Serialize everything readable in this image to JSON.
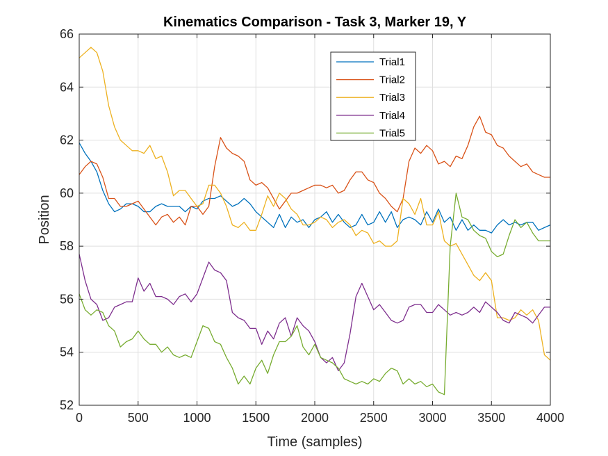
{
  "chart_data": {
    "type": "line",
    "title": "Kinematics Comparison - Task 3, Marker 19, Y",
    "xlabel": "Time (samples)",
    "ylabel": "Position",
    "xlim": [
      0,
      4000
    ],
    "ylim": [
      52,
      66
    ],
    "xticks": [
      0,
      500,
      1000,
      1500,
      2000,
      2500,
      3000,
      3500,
      4000
    ],
    "yticks": [
      52,
      54,
      56,
      58,
      60,
      62,
      64,
      66
    ],
    "grid": true,
    "legend_position": "top-right",
    "series": [
      {
        "name": "Trial1",
        "color": "#0072BD",
        "x": [
          0,
          50,
          100,
          150,
          200,
          250,
          300,
          350,
          400,
          450,
          500,
          550,
          600,
          650,
          700,
          750,
          800,
          850,
          900,
          950,
          1000,
          1050,
          1100,
          1150,
          1200,
          1250,
          1300,
          1350,
          1400,
          1450,
          1500,
          1550,
          1600,
          1650,
          1700,
          1750,
          1800,
          1850,
          1900,
          1950,
          2000,
          2050,
          2100,
          2150,
          2200,
          2250,
          2300,
          2350,
          2400,
          2450,
          2500,
          2550,
          2600,
          2650,
          2700,
          2750,
          2800,
          2850,
          2900,
          2950,
          3000,
          3050,
          3100,
          3150,
          3200,
          3250,
          3300,
          3350,
          3400,
          3450,
          3500,
          3550,
          3600,
          3650,
          3700,
          3750,
          3800,
          3850,
          3900,
          3950,
          4000
        ],
        "y": [
          61.9,
          61.5,
          61.2,
          60.8,
          60.1,
          59.6,
          59.3,
          59.4,
          59.6,
          59.6,
          59.5,
          59.3,
          59.3,
          59.5,
          59.6,
          59.5,
          59.5,
          59.5,
          59.3,
          59.5,
          59.4,
          59.7,
          59.8,
          59.8,
          59.9,
          59.7,
          59.5,
          59.6,
          59.8,
          59.6,
          59.3,
          59.1,
          58.9,
          58.7,
          59.2,
          58.7,
          59.1,
          58.9,
          59.0,
          58.7,
          59.0,
          59.1,
          59.3,
          58.9,
          59.2,
          58.9,
          58.7,
          58.8,
          59.2,
          58.8,
          58.9,
          59.3,
          58.9,
          59.3,
          58.7,
          59.0,
          59.1,
          59.0,
          58.8,
          59.3,
          58.9,
          59.4,
          58.9,
          59.1,
          58.6,
          59.0,
          58.6,
          58.8,
          58.6,
          58.6,
          58.5,
          58.8,
          59.0,
          58.8,
          58.9,
          58.8,
          58.9,
          58.9,
          58.6,
          58.7,
          58.8
        ]
      },
      {
        "name": "Trial2",
        "color": "#D95319",
        "x": [
          0,
          50,
          100,
          150,
          200,
          250,
          300,
          350,
          400,
          450,
          500,
          550,
          600,
          650,
          700,
          750,
          800,
          850,
          900,
          950,
          1000,
          1050,
          1100,
          1150,
          1200,
          1250,
          1300,
          1350,
          1400,
          1450,
          1500,
          1550,
          1600,
          1650,
          1700,
          1750,
          1800,
          1850,
          1900,
          1950,
          2000,
          2050,
          2100,
          2150,
          2200,
          2250,
          2300,
          2350,
          2400,
          2450,
          2500,
          2550,
          2600,
          2650,
          2700,
          2750,
          2800,
          2850,
          2900,
          2950,
          3000,
          3050,
          3100,
          3150,
          3200,
          3250,
          3300,
          3350,
          3400,
          3450,
          3500,
          3550,
          3600,
          3650,
          3700,
          3750,
          3800,
          3850,
          3900,
          3950,
          4000
        ],
        "y": [
          60.7,
          61.0,
          61.2,
          61.1,
          60.6,
          59.8,
          59.8,
          59.5,
          59.5,
          59.6,
          59.7,
          59.4,
          59.1,
          58.8,
          59.1,
          59.2,
          58.9,
          59.1,
          58.8,
          59.5,
          59.5,
          59.2,
          59.5,
          61.0,
          62.1,
          61.7,
          61.5,
          61.4,
          61.2,
          60.5,
          60.3,
          60.4,
          60.2,
          59.8,
          59.4,
          59.7,
          60.0,
          60.0,
          60.1,
          60.2,
          60.3,
          60.3,
          60.2,
          60.3,
          60.0,
          60.1,
          60.5,
          60.8,
          60.8,
          60.5,
          60.4,
          60.0,
          59.8,
          59.5,
          59.3,
          59.8,
          61.2,
          61.7,
          61.5,
          61.8,
          61.6,
          61.1,
          61.2,
          61.0,
          61.4,
          61.3,
          61.8,
          62.5,
          62.9,
          62.3,
          62.2,
          61.8,
          61.7,
          61.4,
          61.2,
          61.0,
          61.1,
          60.8,
          60.7,
          60.6,
          60.6
        ]
      },
      {
        "name": "Trial3",
        "color": "#EDB120",
        "x": [
          0,
          50,
          100,
          150,
          200,
          250,
          300,
          350,
          400,
          450,
          500,
          550,
          600,
          650,
          700,
          750,
          800,
          850,
          900,
          950,
          1000,
          1050,
          1100,
          1150,
          1200,
          1250,
          1300,
          1350,
          1400,
          1450,
          1500,
          1550,
          1600,
          1650,
          1700,
          1750,
          1800,
          1850,
          1900,
          1950,
          2000,
          2050,
          2100,
          2150,
          2200,
          2250,
          2300,
          2350,
          2400,
          2450,
          2500,
          2550,
          2600,
          2650,
          2700,
          2750,
          2800,
          2850,
          2900,
          2950,
          3000,
          3050,
          3100,
          3150,
          3200,
          3250,
          3300,
          3350,
          3400,
          3450,
          3500,
          3550,
          3600,
          3650,
          3700,
          3750,
          3800,
          3850,
          3900,
          3950,
          4000
        ],
        "y": [
          65.1,
          65.3,
          65.5,
          65.3,
          64.6,
          63.3,
          62.5,
          62.0,
          61.8,
          61.6,
          61.6,
          61.5,
          61.8,
          61.3,
          61.4,
          60.8,
          59.9,
          60.1,
          60.1,
          59.8,
          59.5,
          59.6,
          60.3,
          60.3,
          60.0,
          59.5,
          58.8,
          58.7,
          58.9,
          58.6,
          58.6,
          59.2,
          59.9,
          59.5,
          60.0,
          59.8,
          59.4,
          59.2,
          58.8,
          58.8,
          58.9,
          59.1,
          59.0,
          58.7,
          58.9,
          59.0,
          58.8,
          58.4,
          58.6,
          58.5,
          58.1,
          58.2,
          58.0,
          58.0,
          58.2,
          59.8,
          59.6,
          59.2,
          59.8,
          58.8,
          58.8,
          59.3,
          58.2,
          58.0,
          58.1,
          57.7,
          57.3,
          56.9,
          56.7,
          57.0,
          56.7,
          55.3,
          55.3,
          55.2,
          55.3,
          55.6,
          55.4,
          55.6,
          55.2,
          53.9,
          53.7
        ]
      },
      {
        "name": "Trial4",
        "color": "#7E2F8E",
        "x": [
          0,
          50,
          100,
          150,
          200,
          250,
          300,
          350,
          400,
          450,
          500,
          550,
          600,
          650,
          700,
          750,
          800,
          850,
          900,
          950,
          1000,
          1050,
          1100,
          1150,
          1200,
          1250,
          1300,
          1350,
          1400,
          1450,
          1500,
          1550,
          1600,
          1650,
          1700,
          1750,
          1800,
          1850,
          1900,
          1950,
          2000,
          2050,
          2100,
          2150,
          2200,
          2250,
          2300,
          2350,
          2400,
          2450,
          2500,
          2550,
          2600,
          2650,
          2700,
          2750,
          2800,
          2850,
          2900,
          2950,
          3000,
          3050,
          3100,
          3150,
          3200,
          3250,
          3300,
          3350,
          3400,
          3450,
          3500,
          3550,
          3600,
          3650,
          3700,
          3750,
          3800,
          3850,
          3900,
          3950,
          4000
        ],
        "y": [
          57.7,
          56.7,
          56.0,
          55.8,
          55.2,
          55.3,
          55.7,
          55.8,
          55.9,
          55.9,
          56.8,
          56.3,
          56.6,
          56.1,
          56.1,
          56.0,
          55.8,
          56.1,
          56.2,
          55.9,
          56.2,
          56.8,
          57.4,
          57.1,
          57.0,
          56.7,
          55.5,
          55.3,
          55.2,
          54.9,
          54.9,
          54.3,
          54.8,
          54.5,
          55.1,
          55.3,
          54.6,
          55.3,
          55.0,
          54.8,
          54.4,
          53.8,
          53.6,
          53.8,
          53.3,
          53.6,
          54.7,
          56.1,
          56.6,
          56.1,
          55.6,
          55.8,
          55.5,
          55.2,
          55.1,
          55.2,
          55.7,
          55.8,
          55.8,
          55.5,
          55.5,
          55.8,
          55.6,
          55.4,
          55.5,
          55.4,
          55.5,
          55.7,
          55.5,
          55.9,
          55.7,
          55.5,
          55.2,
          55.1,
          55.5,
          55.4,
          55.3,
          55.1,
          55.4,
          55.7,
          55.7
        ]
      },
      {
        "name": "Trial5",
        "color": "#77AC30",
        "x": [
          0,
          50,
          100,
          150,
          200,
          250,
          300,
          350,
          400,
          450,
          500,
          550,
          600,
          650,
          700,
          750,
          800,
          850,
          900,
          950,
          1000,
          1050,
          1100,
          1150,
          1200,
          1250,
          1300,
          1350,
          1400,
          1450,
          1500,
          1550,
          1600,
          1650,
          1700,
          1750,
          1800,
          1850,
          1900,
          1950,
          2000,
          2050,
          2100,
          2150,
          2200,
          2250,
          2300,
          2350,
          2400,
          2450,
          2500,
          2550,
          2600,
          2650,
          2700,
          2750,
          2800,
          2850,
          2900,
          2950,
          3000,
          3050,
          3100,
          3150,
          3200,
          3250,
          3300,
          3350,
          3400,
          3450,
          3500,
          3550,
          3600,
          3650,
          3700,
          3750,
          3800,
          3850,
          3900,
          3950,
          4000
        ],
        "y": [
          56.2,
          55.6,
          55.4,
          55.6,
          55.5,
          55.0,
          54.8,
          54.2,
          54.4,
          54.5,
          54.8,
          54.5,
          54.3,
          54.3,
          54.0,
          54.2,
          53.9,
          53.8,
          53.9,
          53.8,
          54.4,
          55.0,
          54.9,
          54.4,
          54.3,
          53.8,
          53.4,
          52.8,
          53.1,
          52.8,
          53.4,
          53.7,
          53.2,
          53.9,
          54.4,
          54.4,
          54.6,
          55.0,
          54.2,
          53.9,
          54.3,
          53.8,
          53.7,
          53.6,
          53.4,
          53.0,
          52.9,
          52.8,
          52.9,
          52.8,
          53.0,
          52.9,
          53.2,
          53.4,
          53.3,
          52.8,
          53.0,
          52.8,
          52.9,
          52.7,
          52.8,
          52.5,
          52.4,
          58.0,
          60.0,
          59.1,
          59.0,
          58.6,
          58.4,
          58.3,
          57.8,
          57.6,
          57.7,
          58.4,
          59.0,
          58.7,
          58.9,
          58.5,
          58.2,
          58.2,
          58.2
        ]
      }
    ]
  }
}
